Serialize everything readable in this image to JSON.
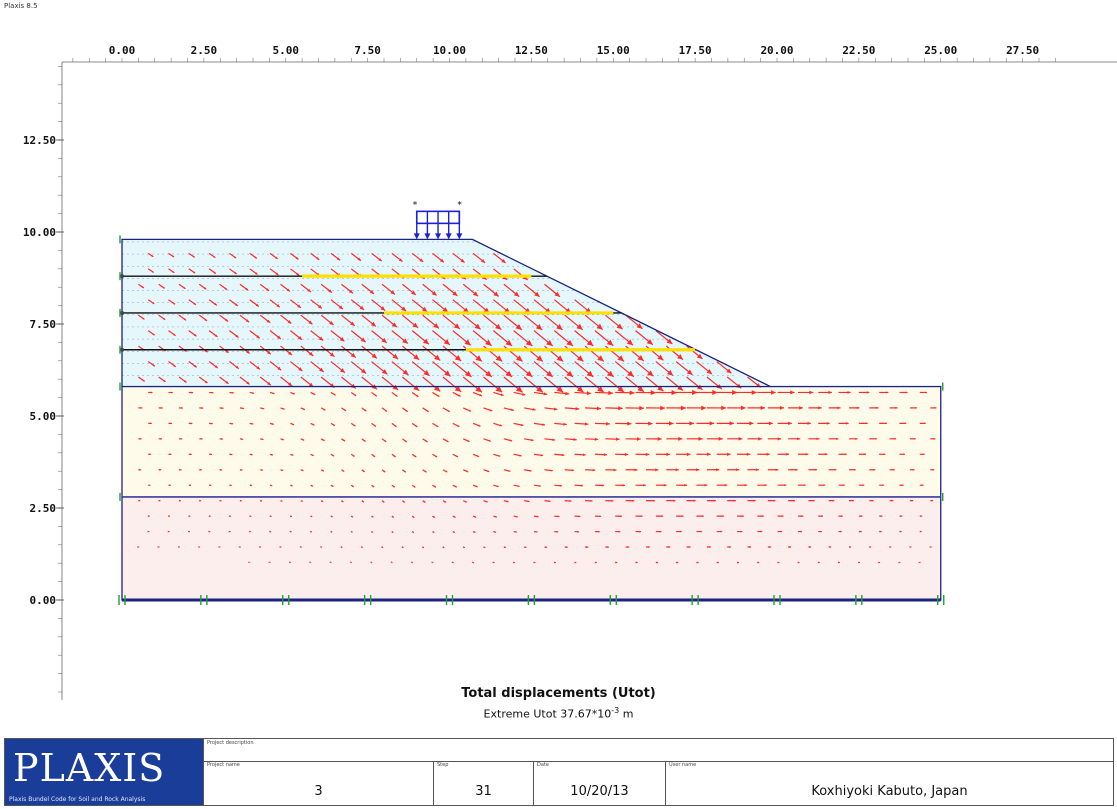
{
  "window": {
    "version_label": "Plaxis 8.5"
  },
  "axes": {
    "x_ticks": [
      "0.00",
      "2.50",
      "5.00",
      "7.50",
      "10.00",
      "12.50",
      "15.00",
      "17.50",
      "20.00",
      "22.50",
      "25.00",
      "27.50"
    ],
    "y_ticks": [
      "12.50",
      "10.00",
      "7.50",
      "5.00",
      "2.50",
      "0.00"
    ]
  },
  "caption": {
    "title": "Total displacements (Utot)",
    "subtitle": "Extreme Utot 37.67*10",
    "exponent": "-3",
    "unit": " m"
  },
  "footer": {
    "logo": "PLAXIS",
    "logo_sub": "Plaxis Bundel Code for Soil and Rock Analysis",
    "project_description_label": "Project description",
    "project_name_label": "Project name",
    "project_name": "3",
    "step_label": "Step",
    "step": "31",
    "date_label": "Date",
    "date": "10/20/13",
    "user_label": "User name",
    "user": "Koxhiyoki Kabuto, Japan"
  },
  "colors": {
    "arrow": "#ff2a2a",
    "geogrid": "#ffe000",
    "embankment_fill": "#e6f7fb",
    "upper_soil_fill": "#fefbeb",
    "lower_soil_fill": "#fdeeee",
    "boundary": "#1a237e",
    "fixity": "#1f9e3a",
    "load": "#1e1ed8"
  },
  "chart_data": {
    "type": "vector-field",
    "x_unit": "m",
    "y_unit": "m",
    "xlim": [
      -1.5,
      28.5
    ],
    "ylim": [
      -3.0,
      14.8
    ],
    "model": {
      "base": [
        0,
        0
      ],
      "right_edge": 25.0,
      "ground_level": 5.8,
      "soil_boundary": 2.8,
      "embankment_crest": 9.8,
      "crest_x": [
        0,
        10.7
      ],
      "toe_x": 19.8
    },
    "geogrids": [
      {
        "y": 8.8,
        "x_from": 5.5,
        "x_to": 12.5
      },
      {
        "y": 7.8,
        "x_from": 8.0,
        "x_to": 15.0
      },
      {
        "y": 6.8,
        "x_from": 10.5,
        "x_to": 17.5
      }
    ],
    "load": {
      "x_from": 9.0,
      "x_to": 10.3,
      "y": 9.8
    }
  }
}
